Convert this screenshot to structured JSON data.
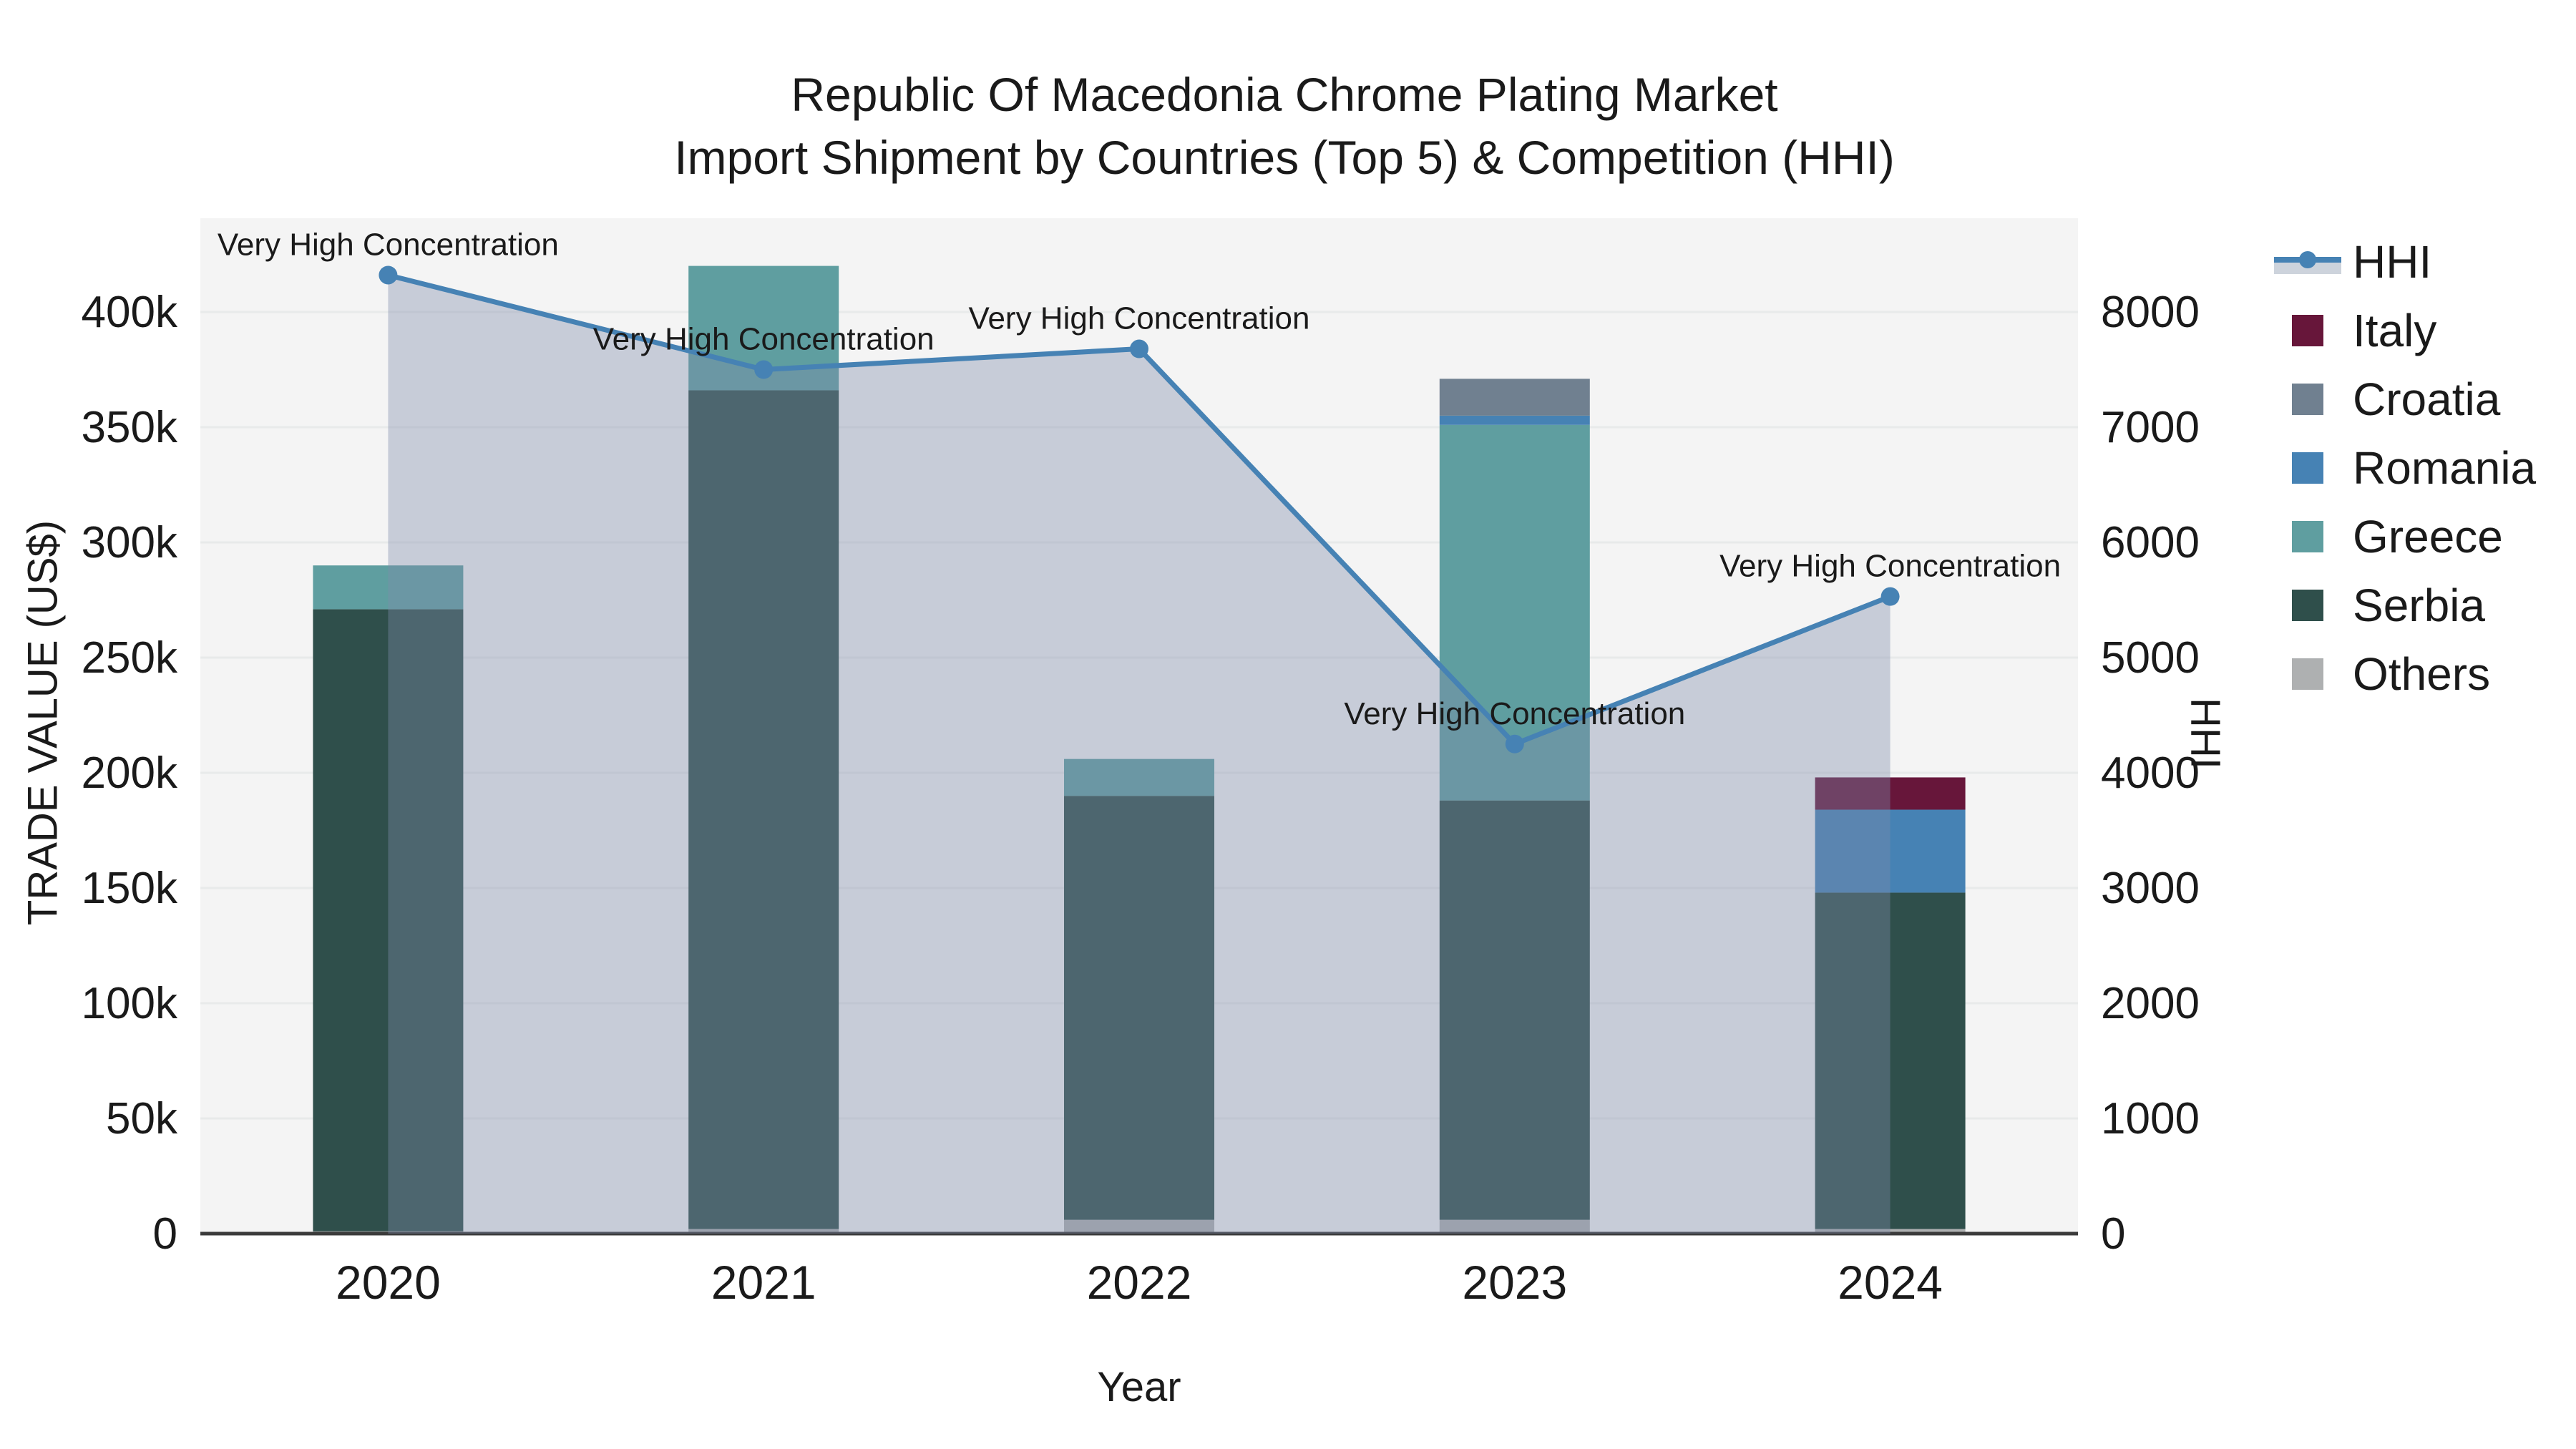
{
  "title": {
    "line1": "Republic Of Macedonia Chrome Plating Market",
    "line2": "Import Shipment by Countries (Top 5) & Competition (HHI)"
  },
  "axes": {
    "y_left": {
      "title": "TRADE VALUE (US$)",
      "tick_labels": [
        "0",
        "50k",
        "100k",
        "150k",
        "200k",
        "250k",
        "300k",
        "350k",
        "400k"
      ],
      "tick_values": [
        0,
        50000,
        100000,
        150000,
        200000,
        250000,
        300000,
        350000,
        400000
      ],
      "range": [
        0,
        440000
      ]
    },
    "y_right": {
      "title": "HHI",
      "tick_labels": [
        "0",
        "1000",
        "2000",
        "3000",
        "4000",
        "5000",
        "6000",
        "7000",
        "8000"
      ],
      "tick_values": [
        0,
        1000,
        2000,
        3000,
        4000,
        5000,
        6000,
        7000,
        8000
      ],
      "range": [
        0,
        8800
      ]
    },
    "x": {
      "title": "Year",
      "categories": [
        "2020",
        "2021",
        "2022",
        "2023",
        "2024"
      ]
    }
  },
  "legend": {
    "items": [
      {
        "id": "hhi",
        "label": "HHI",
        "type": "line"
      },
      {
        "id": "italy",
        "label": "Italy",
        "type": "swatch",
        "color": "#67163A"
      },
      {
        "id": "croatia",
        "label": "Croatia",
        "type": "swatch",
        "color": "#708090"
      },
      {
        "id": "romania",
        "label": "Romania",
        "type": "swatch",
        "color": "#4682B4"
      },
      {
        "id": "greece",
        "label": "Greece",
        "type": "swatch",
        "color": "#5F9EA0"
      },
      {
        "id": "serbia",
        "label": "Serbia",
        "type": "swatch",
        "color": "#2F4F4B"
      },
      {
        "id": "others",
        "label": "Others",
        "type": "swatch",
        "color": "#AEB0B1"
      }
    ]
  },
  "annotations": {
    "text": "Very High Concentration",
    "applies_to_years": [
      "2020",
      "2021",
      "2022",
      "2023",
      "2024"
    ]
  },
  "chart_data": {
    "type": "bar+line",
    "title": "Republic Of Macedonia Chrome Plating Market Import Shipment by Countries (Top 5) & Competition (HHI)",
    "xlabel": "Year",
    "ylabel_left": "TRADE VALUE (US$)",
    "ylabel_right": "HHI",
    "categories": [
      "2020",
      "2021",
      "2022",
      "2023",
      "2024"
    ],
    "stack_order_bottom_to_top": [
      "Others",
      "Serbia",
      "Greece",
      "Romania",
      "Croatia",
      "Italy"
    ],
    "series": [
      {
        "name": "Others",
        "values": [
          1000,
          2000,
          6000,
          6000,
          2000
        ]
      },
      {
        "name": "Serbia",
        "values": [
          270000,
          364000,
          184000,
          182000,
          146000
        ]
      },
      {
        "name": "Greece",
        "values": [
          19000,
          54000,
          16000,
          163000,
          0
        ]
      },
      {
        "name": "Romania",
        "values": [
          0,
          0,
          0,
          4000,
          36000
        ]
      },
      {
        "name": "Croatia",
        "values": [
          0,
          0,
          0,
          16000,
          0
        ]
      },
      {
        "name": "Italy",
        "values": [
          0,
          0,
          0,
          0,
          14000
        ]
      }
    ],
    "bar_totals": [
      290000,
      420000,
      206000,
      371000,
      198000
    ],
    "line_series": {
      "name": "HHI",
      "values": [
        8320,
        7500,
        7680,
        4250,
        5530
      ],
      "axis": "right",
      "area_fill": true
    },
    "annotations": [
      {
        "year": "2020",
        "text": "Very High Concentration"
      },
      {
        "year": "2021",
        "text": "Very High Concentration"
      },
      {
        "year": "2022",
        "text": "Very High Concentration"
      },
      {
        "year": "2023",
        "text": "Very High Concentration"
      },
      {
        "year": "2024",
        "text": "Very High Concentration"
      }
    ],
    "ylim_left": [
      0,
      440000
    ],
    "ylim_right": [
      0,
      8800
    ],
    "grid": true,
    "legend_position": "right"
  },
  "colors": {
    "italy": "#67163A",
    "croatia": "#708090",
    "romania": "#4682B4",
    "greece": "#5F9EA0",
    "serbia": "#2F4F4B",
    "others": "#AEB0B1",
    "hhi_line": "#4682B4",
    "area_fill": "rgba(125,140,170,0.38)",
    "legend_area_sample": "#CDD3DC",
    "plot_background": "#F4F4F4",
    "gridline": "#E8EAEA",
    "axis_line": "#3B3B3B",
    "text": "#1A1A1A"
  }
}
